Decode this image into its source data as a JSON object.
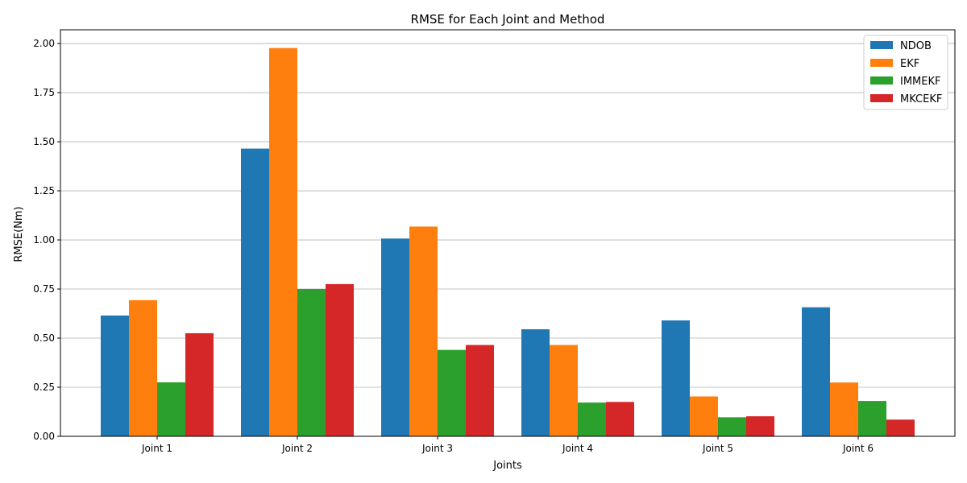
{
  "chart_data": {
    "type": "bar",
    "title": "RMSE for Each Joint and Method",
    "xlabel": "Joints",
    "ylabel": "RMSE(Nm)",
    "categories": [
      "Joint 1",
      "Joint 2",
      "Joint 3",
      "Joint 4",
      "Joint 5",
      "Joint 6"
    ],
    "ylim": [
      0,
      2.07
    ],
    "yticks": [
      "0.00",
      "0.25",
      "0.50",
      "0.75",
      "1.00",
      "1.25",
      "1.50",
      "1.75",
      "2.00"
    ],
    "grid": "horizontal",
    "legend_position": "top-right",
    "series": [
      {
        "name": "NDOB",
        "color": "#1f77b4",
        "values": [
          0.615,
          1.465,
          1.007,
          0.545,
          0.59,
          0.657
        ]
      },
      {
        "name": "EKF",
        "color": "#ff7f0e",
        "values": [
          0.693,
          1.977,
          1.068,
          0.465,
          0.203,
          0.274
        ]
      },
      {
        "name": "IMMEKF",
        "color": "#2ca02c",
        "values": [
          0.275,
          0.75,
          0.44,
          0.172,
          0.097,
          0.18
        ]
      },
      {
        "name": "MKCEKF",
        "color": "#d62728",
        "values": [
          0.525,
          0.775,
          0.465,
          0.175,
          0.102,
          0.085
        ]
      }
    ]
  }
}
